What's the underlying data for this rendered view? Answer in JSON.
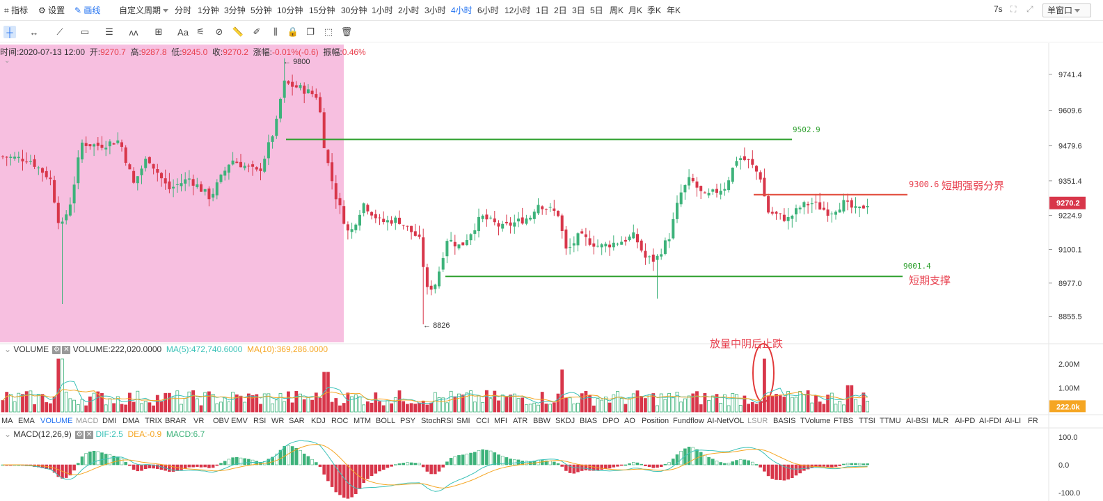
{
  "toolbar": {
    "indicator": "指标",
    "settings": "设置",
    "draw": "画线",
    "custom_period": "自定义周期",
    "periods": [
      "分时",
      "1分钟",
      "3分钟",
      "5分钟",
      "10分钟",
      "15分钟",
      "30分钟",
      "1小时",
      "2小时",
      "3小时",
      "4小时",
      "6小时",
      "12小时",
      "1日",
      "2日",
      "3日",
      "5日",
      "周K",
      "月K",
      "季K",
      "年K"
    ],
    "active_period": "4小时",
    "refresh": "7s",
    "window_mode": "单窗口"
  },
  "ohlc": {
    "time_label": "时间:",
    "time": "2020-07-13 12:00",
    "open_label": "开:",
    "open": "9270.7",
    "high_label": "高:",
    "high": "9287.8",
    "low_label": "低:",
    "low": "9245.0",
    "close_label": "收:",
    "close": "9270.2",
    "change_label": "涨幅:",
    "change": "-0.01%(-0.6)",
    "amp_label": "振幅:",
    "amp": "0.46%"
  },
  "volume_header": {
    "name": "VOLUME",
    "value": "VOLUME:222,020.0000",
    "ma5": "MA(5):472,740.6000",
    "ma10": "MA(10):369,286.0000"
  },
  "macd_header": {
    "name": "MACD(12,26,9)",
    "dif": "DIF:2.5",
    "dea": "DEA:-0.9",
    "macd": "MACD:6.7"
  },
  "indicator_tabs": [
    "MA",
    "EMA",
    "VOLUME",
    "MACD",
    "DMI",
    "DMA",
    "TRIX",
    "BRAR",
    "VR",
    "OBV",
    "EMV",
    "RSI",
    "WR",
    "SAR",
    "KDJ",
    "ROC",
    "MTM",
    "BOLL",
    "PSY",
    "StochRSI",
    "SMI",
    "CCI",
    "MFI",
    "ATR",
    "BBW",
    "SKDJ",
    "BIAS",
    "DPO",
    "AO",
    "Position",
    "Fundflow",
    "AI-NetVOL",
    "LSUR",
    "BASIS",
    "TVolume",
    "FTBS",
    "TTSI",
    "TTMU",
    "AI-BSI",
    "MLR",
    "AI-PD",
    "AI-FDI",
    "AI-LI",
    "FR"
  ],
  "active_indicator": "VOLUME",
  "annotations": {
    "resistance_value": "9502.9",
    "divider_value": "9300.6",
    "divider_label": "短期强弱分界",
    "support_value": "9001.4",
    "support_label": "短期支撑",
    "volume_note": "放量中阴后止跌",
    "high_mark": "9800",
    "low_mark": "8826"
  },
  "chart_data": {
    "type": "candlestick",
    "price_axis_ticks": [
      "9741.4",
      "9609.6",
      "9479.6",
      "9351.4",
      "9224.9",
      "9100.1",
      "8977.0",
      "8855.5"
    ],
    "current_price": "9270.2",
    "volume_axis_ticks": [
      "2.00M",
      "1.00M"
    ],
    "current_volume": "222.0k",
    "macd_axis_ticks": [
      "100.0",
      "0.0",
      "-100.0"
    ],
    "price_range": [
      8760,
      9830
    ],
    "volume_range": [
      0,
      2400000
    ],
    "macd_range": [
      -130,
      130
    ],
    "horizontal_lines": [
      {
        "value": 9502.9,
        "color": "#2ea02e"
      },
      {
        "value": 9300.6,
        "color": "#e24a3a"
      },
      {
        "value": 9001.4,
        "color": "#2ea02e"
      }
    ],
    "colors": {
      "up": "#3db27a",
      "down": "#d8364a",
      "ma5": "#3cc2b8",
      "ma10": "#f5a623",
      "dif": "#3cc2b8",
      "dea": "#f5a623",
      "highlight": "#f7bfe0"
    }
  }
}
